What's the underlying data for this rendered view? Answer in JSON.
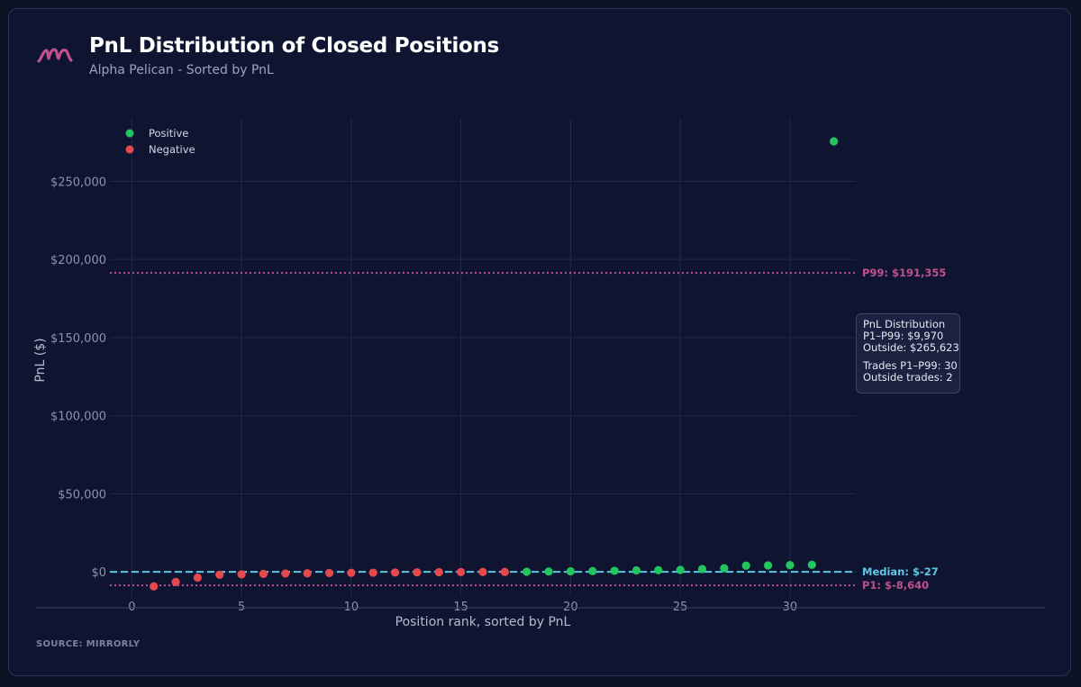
{
  "header": {
    "title": "PnL Distribution of Closed Positions",
    "subtitle": "Alpha Pelican - Sorted by PnL"
  },
  "source": "SOURCE: MIRRORLY",
  "colors": {
    "positive": "#22c55e",
    "negative": "#e5484d",
    "percentile": "#c0508f",
    "median": "#5ec8e6",
    "brand": "#c0508f"
  },
  "info_box": {
    "title": "PnL Distribution",
    "line1": "P1–P99: $9,970",
    "line2": "Outside: $265,623",
    "line3": "Trades P1–P99: 30",
    "line4": "Outside trades: 2"
  },
  "chart_data": {
    "type": "scatter",
    "title": "PnL Distribution of Closed Positions",
    "subtitle": "Alpha Pelican - Sorted by PnL",
    "xlabel": "Position rank, sorted by PnL",
    "ylabel": "PnL ($)",
    "xlim": [
      -1,
      33
    ],
    "ylim": [
      -15500,
      290000
    ],
    "x_ticks": [
      0,
      5,
      10,
      15,
      20,
      25,
      30
    ],
    "y_ticks": [
      0,
      50000,
      100000,
      150000,
      200000,
      250000
    ],
    "y_tick_labels": [
      "$0",
      "$50,000",
      "$100,000",
      "$150,000",
      "$200,000",
      "$250,000"
    ],
    "grid": true,
    "legend": "top-left",
    "series": [
      {
        "name": "Positive",
        "color": "#22c55e",
        "x": [
          18,
          19,
          20,
          21,
          22,
          23,
          24,
          25,
          26,
          27,
          28,
          29,
          30,
          31,
          32
        ],
        "y": [
          65,
          230,
          330,
          520,
          680,
          910,
          1080,
          1250,
          1790,
          2300,
          3950,
          4100,
          4350,
          4550,
          275600
        ]
      },
      {
        "name": "Negative",
        "color": "#e5484d",
        "x": [
          1,
          2,
          3,
          4,
          5,
          6,
          7,
          8,
          9,
          10,
          11,
          12,
          13,
          14,
          15,
          16,
          17
        ],
        "y": [
          -9300,
          -6500,
          -3700,
          -1800,
          -1600,
          -1300,
          -1050,
          -920,
          -760,
          -640,
          -540,
          -430,
          -330,
          -240,
          -170,
          -100,
          -60
        ]
      }
    ],
    "reference_lines": [
      {
        "label": "P99: $191,355",
        "value": 191355,
        "style": "dotted",
        "color": "#c0508f"
      },
      {
        "label": "Median: $-27",
        "value": -27,
        "style": "dashed",
        "color": "#5ec8e6"
      },
      {
        "label": "P1: $-8,640",
        "value": -8640,
        "style": "dotted",
        "color": "#c0508f"
      }
    ]
  }
}
